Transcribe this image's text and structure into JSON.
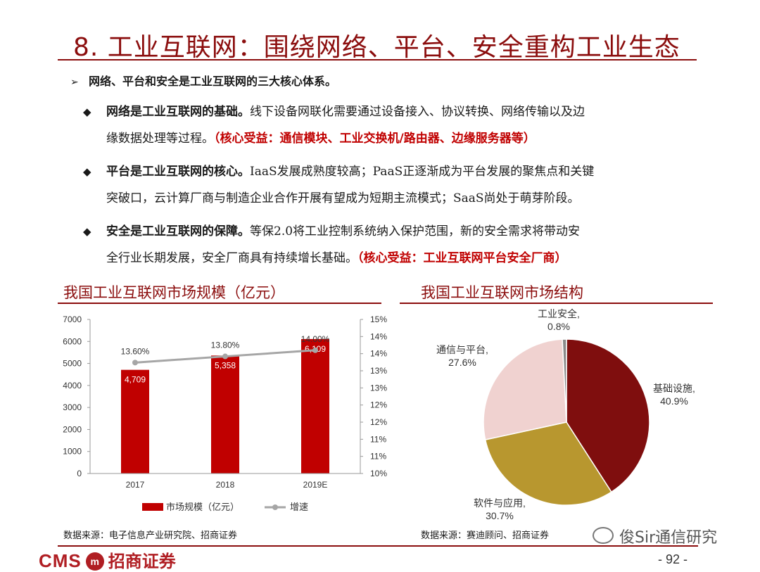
{
  "header": {
    "title": "8. 工业互联网：围绕网络、平台、安全重构工业生态"
  },
  "intro": "网络、平台和安全是工业互联网的三大核心体系。",
  "bullets": [
    {
      "bold": "网络是工业互联网的基础。",
      "text1": "线下设备网联化需要通过设备接入、协议转换、网络传输以及边",
      "text2": "缘数据处理等过程。",
      "highlight": "（核心受益：通信模块、工业交换机/路由器、边缘服务器等）"
    },
    {
      "bold": "平台是工业互联网的核心。",
      "text1": "IaaS发展成熟度较高；PaaS正逐渐成为平台发展的聚焦点和关键",
      "text2": "突破口，云计算厂商与制造企业合作开展有望成为短期主流模式；SaaS尚处于萌芽阶段。",
      "highlight": ""
    },
    {
      "bold": "安全是工业互联网的保障。",
      "text1": "等保2.0将工业控制系统纳入保护范围，新的安全需求将带动安",
      "text2": "全行业长期发展，安全厂商具有持续增长基础。",
      "highlight": "（核心受益：工业互联网平台安全厂商）"
    }
  ],
  "left_section": {
    "title": "我国工业互联网市场规模（亿元）",
    "source": "数据来源：电子信息产业研究院、招商证券"
  },
  "right_section": {
    "title": "我国工业互联网市场结构",
    "source": "数据来源：赛迪顾问、招商证券"
  },
  "chart_data": [
    {
      "type": "bar",
      "categories": [
        "2017",
        "2018",
        "2019E"
      ],
      "series": [
        {
          "name": "市场规模（亿元）",
          "values": [
            4709,
            5358,
            6109
          ],
          "labels": [
            "4,709",
            "5,358",
            "6,109"
          ],
          "color": "#c00000",
          "axis": "left"
        },
        {
          "name": "增速",
          "values": [
            13.6,
            13.8,
            14.0
          ],
          "labels": [
            "13.60%",
            "13.80%",
            "14.00%"
          ],
          "color": "#a6a6a6",
          "type": "line",
          "axis": "right"
        }
      ],
      "ylim": [
        0,
        7000
      ],
      "yticks": [
        "0",
        "1000",
        "2000",
        "3000",
        "4000",
        "5000",
        "6000",
        "7000"
      ],
      "y2lim": [
        10,
        15
      ],
      "y2ticks": [
        "10%",
        "11%",
        "11%",
        "12%",
        "12%",
        "13%",
        "13%",
        "14%",
        "14%",
        "15%"
      ],
      "legend": "bottom",
      "grid": false
    },
    {
      "type": "pie",
      "slices": [
        {
          "label": "基础设施,",
          "pct": "40.9%",
          "value": 40.9,
          "color": "#7f0e0e"
        },
        {
          "label": "软件与应用,",
          "pct": "30.7%",
          "value": 30.7,
          "color": "#b8972f"
        },
        {
          "label": "通信与平台,",
          "pct": "27.6%",
          "value": 27.6,
          "color": "#f0d2d0"
        },
        {
          "label": "工业安全,",
          "pct": "0.8%",
          "value": 0.8,
          "color": "#8a8a8a"
        }
      ]
    }
  ],
  "footer": {
    "logo_en": "CMS",
    "logo_badge": "m",
    "logo_cn": "招商证券",
    "page": "- 92 -",
    "watermark": "俊Sir通信研究"
  }
}
